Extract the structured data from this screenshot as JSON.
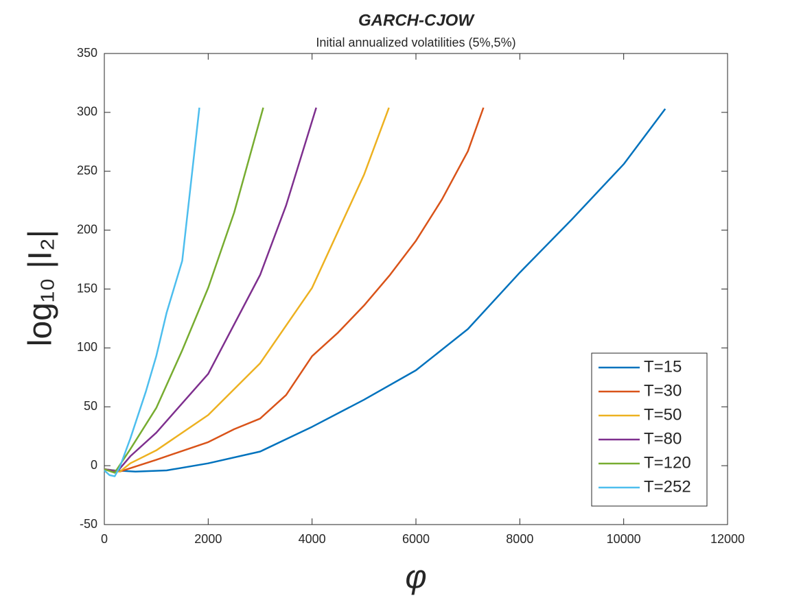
{
  "chart_data": {
    "type": "line",
    "title": "GARCH-CJOW",
    "subtitle": "Initial annualized volatilities (5%,5%)",
    "xlabel": "φ",
    "ylabel": "log₁₀ |I₂|",
    "xlim": [
      0,
      12000
    ],
    "xticks": [
      0,
      2000,
      4000,
      6000,
      8000,
      10000,
      12000
    ],
    "ylim": [
      -50,
      350
    ],
    "yticks": [
      -50,
      0,
      50,
      100,
      150,
      200,
      250,
      300,
      350
    ],
    "grid": false,
    "legend": "lower-right",
    "series": [
      {
        "name": "T=15",
        "color": "#0072bd",
        "x": [
          0,
          200,
          600,
          1200,
          2000,
          3000,
          4000,
          5000,
          6000,
          7000,
          8000,
          9000,
          10000,
          10800
        ],
        "values": [
          -3,
          -4,
          -5,
          -4,
          2,
          12,
          33,
          56,
          81,
          116,
          164,
          209,
          256,
          303
        ]
      },
      {
        "name": "T=30",
        "color": "#d95319",
        "x": [
          0,
          300,
          1000,
          2000,
          2500,
          3000,
          3500,
          4000,
          4500,
          5000,
          5500,
          6000,
          6500,
          7000,
          7300
        ],
        "values": [
          -3,
          -5,
          5,
          20,
          31,
          40,
          60,
          93,
          113,
          136,
          162,
          191,
          226,
          267,
          304
        ]
      },
      {
        "name": "T=50",
        "color": "#edb120",
        "x": [
          0,
          300,
          500,
          1000,
          2000,
          3000,
          4000,
          5000,
          5480
        ],
        "values": [
          -3,
          -5,
          2,
          13,
          43,
          87,
          151,
          247,
          304
        ]
      },
      {
        "name": "T=80",
        "color": "#7e2f8e",
        "x": [
          0,
          250,
          500,
          1000,
          2000,
          3000,
          3500,
          4080
        ],
        "values": [
          -3,
          -5,
          8,
          28,
          78,
          162,
          221,
          304
        ]
      },
      {
        "name": "T=120",
        "color": "#77ac30",
        "x": [
          0,
          200,
          500,
          1000,
          1500,
          2000,
          2500,
          3060
        ],
        "values": [
          -3,
          -6,
          14,
          49,
          98,
          151,
          215,
          304
        ]
      },
      {
        "name": "T=252",
        "color": "#4dbeee",
        "x": [
          0,
          100,
          200,
          300,
          500,
          800,
          1000,
          1200,
          1500,
          1830
        ],
        "values": [
          -4,
          -8,
          -9,
          -1,
          23,
          63,
          93,
          130,
          174,
          304
        ]
      }
    ]
  }
}
